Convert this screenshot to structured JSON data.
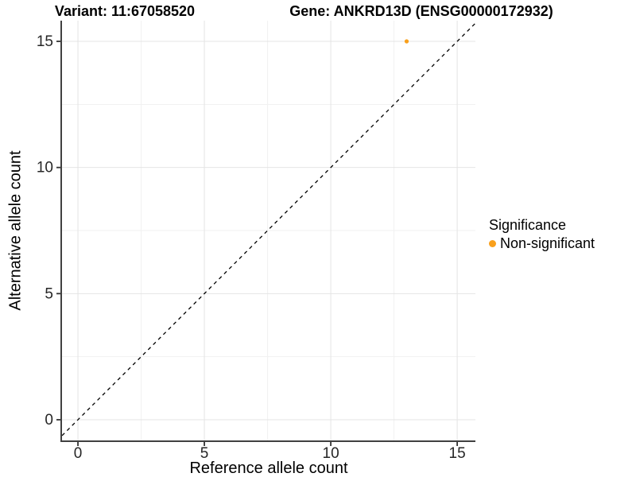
{
  "chart_data": {
    "type": "scatter",
    "title_left": "Variant: 11:67058520",
    "title_right": "Gene: ANKRD13D (ENSG00000172932)",
    "xlabel": "Reference allele count",
    "ylabel": "Alternative allele count",
    "xlim": [
      -0.63,
      15.72
    ],
    "ylim": [
      -0.82,
      15.82
    ],
    "xticks": [
      0,
      5,
      10,
      15
    ],
    "yticks": [
      0,
      5,
      10,
      15
    ],
    "x_minor_breaks": [
      2.5,
      7.5,
      12.5
    ],
    "y_minor_breaks": [
      2.5,
      7.5,
      12.5
    ],
    "grid": true,
    "points": [
      {
        "x": 13,
        "y": 15,
        "series": "Non-significant"
      }
    ],
    "series": [
      {
        "name": "Non-significant",
        "color": "#F9A01C"
      }
    ],
    "reference_line": {
      "kind": "identity",
      "style": "dashed",
      "color": "#000000"
    },
    "legend": {
      "title": "Significance",
      "position": "right"
    }
  },
  "colors": {
    "point": "#F9A01C",
    "grid_major": "#E4E4E4",
    "grid_minor": "#F1F1F1",
    "axis_line": "#404040",
    "tick_mark": "#333333",
    "tick_label": "#262626",
    "background": "#FFFFFF"
  }
}
